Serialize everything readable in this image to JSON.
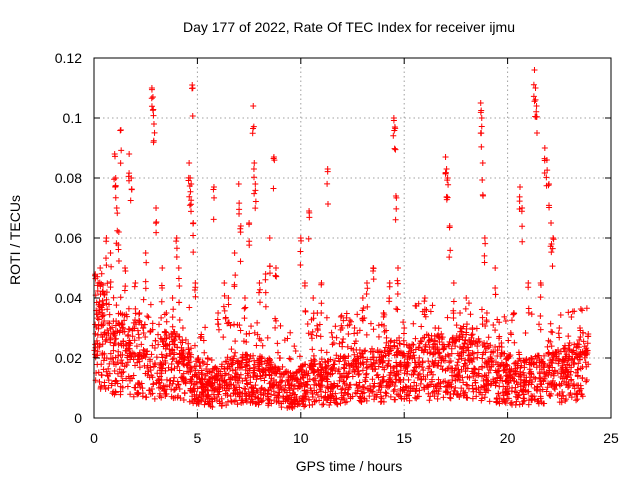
{
  "chart_data": {
    "type": "scatter",
    "title": "Day 177 of 2022, Rate Of TEC Index for receiver ijmu",
    "xlabel": "GPS time / hours",
    "ylabel": "ROTI / TECUs",
    "xlim": [
      0,
      25
    ],
    "ylim": [
      0,
      0.12
    ],
    "xticks": [
      0,
      5,
      10,
      15,
      20,
      25
    ],
    "xtick_labels": [
      "0",
      "5",
      "10",
      "15",
      "20",
      "25"
    ],
    "yticks": [
      0,
      0.02,
      0.04,
      0.06,
      0.08,
      0.1,
      0.12
    ],
    "ytick_labels": [
      "0",
      "0.02",
      "0.04",
      "0.06",
      "0.08",
      "0.1",
      "0.12"
    ],
    "grid": true,
    "marker": "+",
    "marker_color": "#ff0000",
    "series": [
      {
        "name": "ROTI",
        "points": [
          [
            0.1,
            0.015
          ],
          [
            0.2,
            0.045
          ],
          [
            0.3,
            0.05
          ],
          [
            0.4,
            0.035
          ],
          [
            0.5,
            0.028
          ],
          [
            0.6,
            0.06
          ],
          [
            0.8,
            0.055
          ],
          [
            1.0,
            0.088
          ],
          [
            1.05,
            0.08
          ],
          [
            1.1,
            0.07
          ],
          [
            1.2,
            0.062
          ],
          [
            1.3,
            0.096
          ],
          [
            1.5,
            0.05
          ],
          [
            1.7,
            0.088
          ],
          [
            1.8,
            0.08
          ],
          [
            2.0,
            0.045
          ],
          [
            2.2,
            0.035
          ],
          [
            2.5,
            0.055
          ],
          [
            2.8,
            0.11
          ],
          [
            2.85,
            0.107
          ],
          [
            2.9,
            0.098
          ],
          [
            3.0,
            0.07
          ],
          [
            3.3,
            0.05
          ],
          [
            3.5,
            0.035
          ],
          [
            3.8,
            0.04
          ],
          [
            4.0,
            0.06
          ],
          [
            4.1,
            0.05
          ],
          [
            4.3,
            0.03
          ],
          [
            4.6,
            0.085
          ],
          [
            4.65,
            0.08
          ],
          [
            4.7,
            0.078
          ],
          [
            4.75,
            0.111
          ],
          [
            4.8,
            0.065
          ],
          [
            4.9,
            0.045
          ],
          [
            5.2,
            0.015
          ],
          [
            5.5,
            0.02
          ],
          [
            5.8,
            0.077
          ],
          [
            6.0,
            0.035
          ],
          [
            6.3,
            0.045
          ],
          [
            6.5,
            0.04
          ],
          [
            6.8,
            0.055
          ],
          [
            7.0,
            0.078
          ],
          [
            7.1,
            0.064
          ],
          [
            7.3,
            0.04
          ],
          [
            7.5,
            0.065
          ],
          [
            7.7,
            0.104
          ],
          [
            7.75,
            0.085
          ],
          [
            7.8,
            0.078
          ],
          [
            8.0,
            0.045
          ],
          [
            8.3,
            0.048
          ],
          [
            8.5,
            0.06
          ],
          [
            8.7,
            0.087
          ],
          [
            8.8,
            0.05
          ],
          [
            9.0,
            0.02
          ],
          [
            9.5,
            0.015
          ],
          [
            10.0,
            0.06
          ],
          [
            10.2,
            0.045
          ],
          [
            10.4,
            0.069
          ],
          [
            10.6,
            0.04
          ],
          [
            10.8,
            0.035
          ],
          [
            11.0,
            0.045
          ],
          [
            11.3,
            0.083
          ],
          [
            11.6,
            0.025
          ],
          [
            12.0,
            0.03
          ],
          [
            12.3,
            0.028
          ],
          [
            12.6,
            0.03
          ],
          [
            13.0,
            0.04
          ],
          [
            13.2,
            0.045
          ],
          [
            13.5,
            0.05
          ],
          [
            14.0,
            0.035
          ],
          [
            14.3,
            0.045
          ],
          [
            14.5,
            0.1
          ],
          [
            14.55,
            0.097
          ],
          [
            14.6,
            0.074
          ],
          [
            14.7,
            0.05
          ],
          [
            15.0,
            0.03
          ],
          [
            15.5,
            0.02
          ],
          [
            16.0,
            0.04
          ],
          [
            16.5,
            0.03
          ],
          [
            17.0,
            0.087
          ],
          [
            17.05,
            0.083
          ],
          [
            17.1,
            0.08
          ],
          [
            17.2,
            0.064
          ],
          [
            17.4,
            0.045
          ],
          [
            17.7,
            0.035
          ],
          [
            18.0,
            0.04
          ],
          [
            18.3,
            0.03
          ],
          [
            18.7,
            0.105
          ],
          [
            18.75,
            0.1
          ],
          [
            18.8,
            0.085
          ],
          [
            18.9,
            0.06
          ],
          [
            19.0,
            0.035
          ],
          [
            19.4,
            0.05
          ],
          [
            19.7,
            0.025
          ],
          [
            20.0,
            0.02
          ],
          [
            20.3,
            0.035
          ],
          [
            20.6,
            0.077
          ],
          [
            20.7,
            0.07
          ],
          [
            21.0,
            0.045
          ],
          [
            21.3,
            0.116
          ],
          [
            21.35,
            0.11
          ],
          [
            21.4,
            0.104
          ],
          [
            21.6,
            0.045
          ],
          [
            21.8,
            0.09
          ],
          [
            21.9,
            0.086
          ],
          [
            22.0,
            0.078
          ],
          [
            22.1,
            0.065
          ],
          [
            22.2,
            0.06
          ],
          [
            22.5,
            0.03
          ],
          [
            23.0,
            0.025
          ],
          [
            23.5,
            0.03
          ],
          [
            23.9,
            0.028
          ]
        ],
        "density_profile": {
          "x": [
            0,
            1,
            2,
            3,
            4,
            4.8,
            5.5,
            6.5,
            7.5,
            8.5,
            9.5,
            10.5,
            11.5,
            12.5,
            13.5,
            14.5,
            15.5,
            16.5,
            17.5,
            18.5,
            19.5,
            20.5,
            21.5,
            22.5,
            23.5,
            23.9
          ],
          "typical_roti": [
            0.03,
            0.022,
            0.02,
            0.018,
            0.018,
            0.014,
            0.01,
            0.012,
            0.013,
            0.012,
            0.009,
            0.012,
            0.012,
            0.014,
            0.014,
            0.016,
            0.016,
            0.017,
            0.017,
            0.017,
            0.014,
            0.012,
            0.013,
            0.014,
            0.016,
            0.02
          ],
          "point_count": 2600
        }
      }
    ]
  }
}
